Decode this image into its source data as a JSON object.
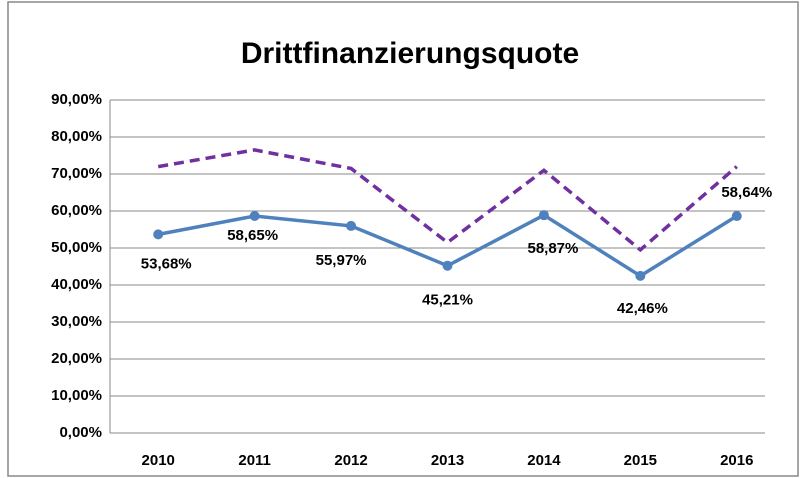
{
  "chart_data": {
    "type": "line",
    "title": "Drittfinanzierungsquote",
    "categories": [
      "2010",
      "2011",
      "2012",
      "2013",
      "2014",
      "2015",
      "2016"
    ],
    "series": [
      {
        "color": "#4f81bd",
        "style": "solid",
        "markers": true,
        "values": [
          53.68,
          58.65,
          55.97,
          45.21,
          58.87,
          42.46,
          58.64
        ],
        "value_labels": [
          "53,68%",
          "58,65%",
          "55,97%",
          "45,21%",
          "58,87%",
          "42,46%",
          "58,64%"
        ]
      },
      {
        "color": "#7030a0",
        "style": "dashed",
        "markers": false,
        "values": [
          72,
          76.5,
          71.5,
          51.5,
          71,
          49.5,
          72
        ]
      }
    ],
    "ylim": [
      0,
      90
    ],
    "yticks": [
      {
        "value": 0,
        "label": "0,00%"
      },
      {
        "value": 10,
        "label": "10,00%"
      },
      {
        "value": 20,
        "label": "20,00%"
      },
      {
        "value": 30,
        "label": "30,00%"
      },
      {
        "value": 40,
        "label": "40,00%"
      },
      {
        "value": 50,
        "label": "50,00%"
      },
      {
        "value": 60,
        "label": "60,00%"
      },
      {
        "value": 70,
        "label": "70,00%"
      },
      {
        "value": 80,
        "label": "80,00%"
      },
      {
        "value": 90,
        "label": "90,00%"
      }
    ],
    "grid": true
  }
}
